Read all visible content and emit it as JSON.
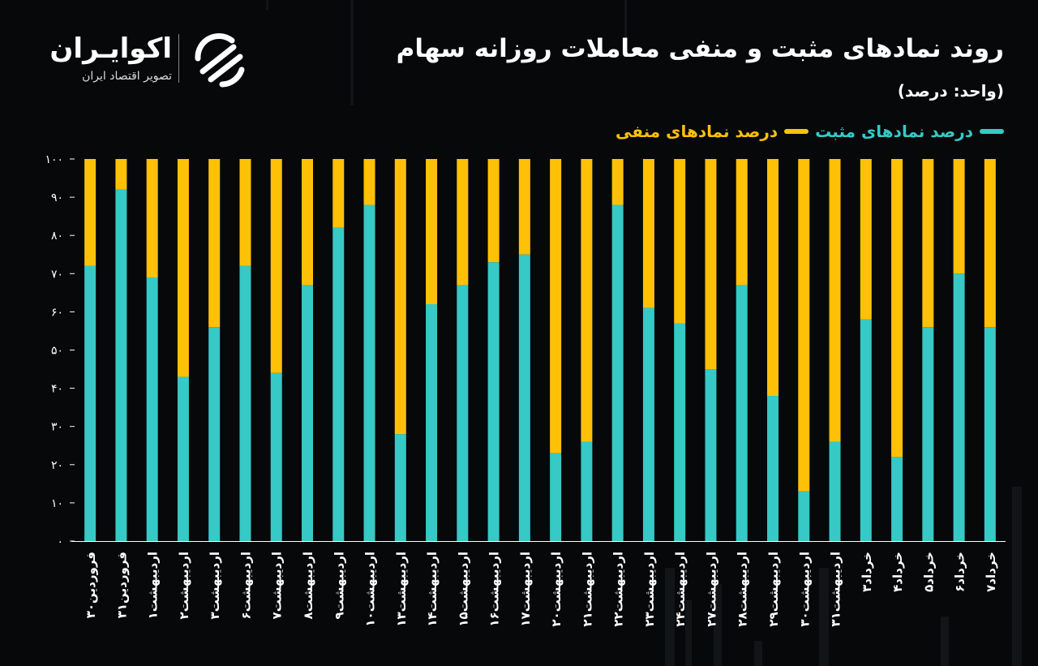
{
  "title": "روند نمادهای مثبت و منفی معاملات روزانه سهام",
  "unit": "(واحد: درصد)",
  "brand": {
    "name": "اکوایـران",
    "tagline": "تصویر اقتصاد ایران",
    "logo_icon": "ecoiran-logo-icon"
  },
  "colors": {
    "positive": "#36c9c6",
    "negative": "#ffc107",
    "background": "#06080a",
    "axis": "#ffffff"
  },
  "chart_data": {
    "type": "bar",
    "stacked": true,
    "title": "روند نمادهای مثبت و منفی معاملات روزانه سهام",
    "ylabel": "",
    "ylim": [
      0,
      100
    ],
    "yticks": [
      "۰",
      "۱۰",
      "۲۰",
      "۳۰",
      "۴۰",
      "۵۰",
      "۶۰",
      "۷۰",
      "۸۰",
      "۹۰",
      "۱۰۰"
    ],
    "legend_position": "top-right",
    "categories": [
      "فروردین۳۰",
      "فروردین۳۱",
      "اردیبهشت۱",
      "اردیبهشت۲",
      "اردیبهشت۳",
      "اردیبهشت۶",
      "اردیبهشت۷",
      "اردیبهشت۸",
      "اردیبهشت۹",
      "اردیبهشت۱۰",
      "اردیبهشت۱۳",
      "اردیبهشت۱۴",
      "اردیبهشت۱۵",
      "اردیبهشت۱۶",
      "اردیبهشت۱۷",
      "اردیبهشت۲۰",
      "اردیبهشت۲۱",
      "اردیبهشت۲۲",
      "اردیبهشت۲۳",
      "اردیبهشت۲۴",
      "اردیبهشت۲۷",
      "اردیبهشت۲۸",
      "اردیبهشت۲۹",
      "اردیبهشت۳۰",
      "اردیبهشت۳۱",
      "خرداد۳",
      "خرداد۴",
      "خرداد۵",
      "خرداد۶",
      "خرداد۷"
    ],
    "series": [
      {
        "name": "درصد نمادهای مثبت",
        "values": [
          72,
          92,
          69,
          43,
          56,
          72,
          44,
          67,
          82,
          88,
          28,
          62,
          67,
          73,
          75,
          23,
          26,
          88,
          61,
          57,
          45,
          67,
          38,
          13,
          26,
          58,
          22,
          56,
          70,
          56
        ]
      },
      {
        "name": "درصد نمادهای منفی",
        "values": [
          28,
          8,
          31,
          57,
          44,
          28,
          56,
          33,
          18,
          12,
          72,
          38,
          33,
          27,
          25,
          77,
          74,
          12,
          39,
          43,
          55,
          33,
          62,
          87,
          74,
          42,
          78,
          44,
          30,
          44
        ]
      }
    ]
  }
}
